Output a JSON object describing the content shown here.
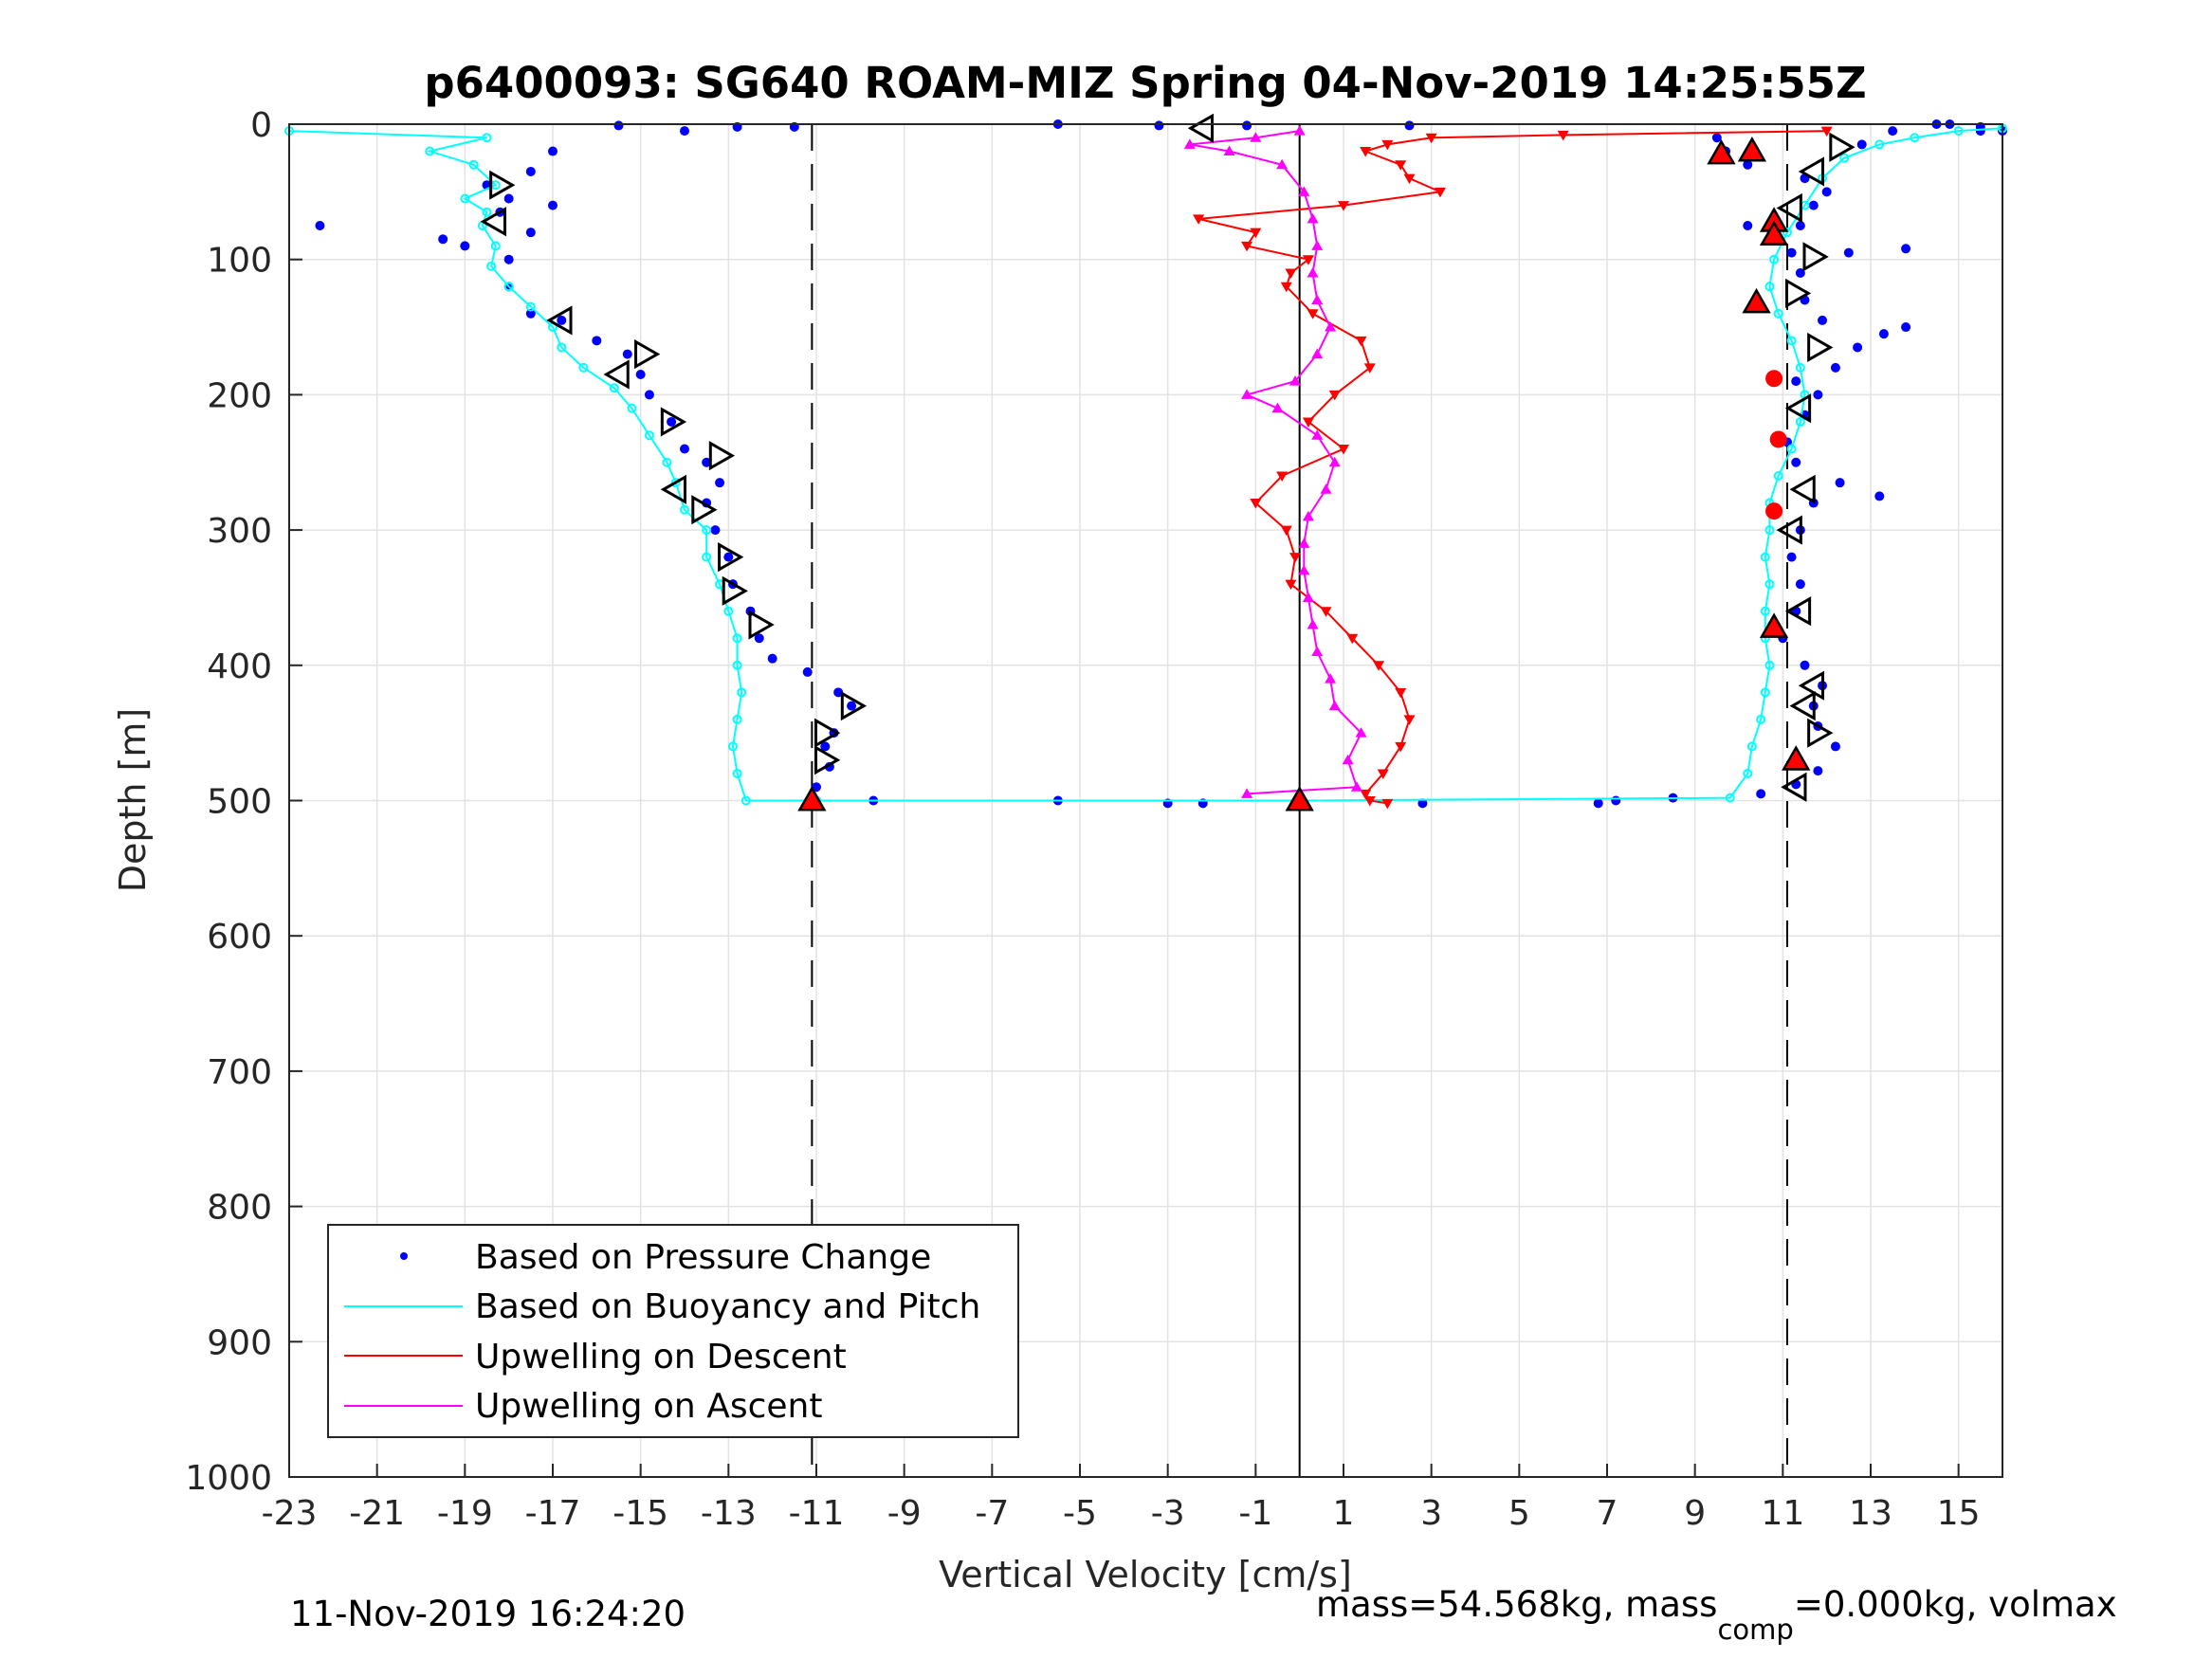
{
  "chart_data": {
    "type": "scatter",
    "title": "p6400093: SG640 ROAM-MIZ Spring 04-Nov-2019 14:25:55Z",
    "xlabel": "Vertical Velocity [cm/s]",
    "ylabel": "Depth [m]",
    "xlim": [
      -23,
      16
    ],
    "ylim": [
      0,
      1000
    ],
    "y_reversed": true,
    "grid": true,
    "x_ticks": [
      -23,
      -21,
      -19,
      -17,
      -15,
      -13,
      -11,
      -9,
      -7,
      -5,
      -3,
      -1,
      1,
      3,
      5,
      7,
      9,
      11,
      13,
      15
    ],
    "y_ticks": [
      0,
      100,
      200,
      300,
      400,
      500,
      600,
      700,
      800,
      900,
      1000
    ],
    "x_tick_labels": [
      "-23",
      "-21",
      "-19",
      "-17",
      "-15",
      "-13",
      "-11",
      "-9",
      "-7",
      "-5",
      "-3",
      "-1",
      "1",
      "3",
      "5",
      "7",
      "9",
      "11",
      "13",
      "15"
    ],
    "y_tick_labels": [
      "0",
      "100",
      "200",
      "300",
      "400",
      "500",
      "600",
      "700",
      "800",
      "900",
      "1000"
    ],
    "legend_position": "bottom-left",
    "legend": [
      {
        "label": "Based on Pressure Change",
        "color": "#0000ff",
        "style": "dot"
      },
      {
        "label": "Based on Buoyancy and Pitch",
        "color": "#00ffff",
        "style": "line"
      },
      {
        "label": "Upwelling on Descent",
        "color": "#ff0000",
        "style": "line"
      },
      {
        "label": "Upwelling on Ascent",
        "color": "#ff00ff",
        "style": "line"
      }
    ],
    "reference_lines": [
      {
        "x": -11.1,
        "style": "dashed",
        "color": "#000000"
      },
      {
        "x": 0,
        "style": "solid",
        "color": "#000000"
      },
      {
        "x": 11.1,
        "style": "dashed",
        "color": "#000000"
      }
    ],
    "series": [
      {
        "name": "Based on Pressure Change",
        "color": "#0000ff",
        "marker": "dot",
        "points": [
          [
            -15.5,
            1
          ],
          [
            -14,
            5
          ],
          [
            -12.8,
            2
          ],
          [
            -11.5,
            2
          ],
          [
            -5.5,
            0
          ],
          [
            -3.2,
            1
          ],
          [
            -1.2,
            1
          ],
          [
            2.5,
            1
          ],
          [
            14.8,
            0
          ],
          [
            15.5,
            2
          ],
          [
            16,
            5
          ],
          [
            -17,
            20
          ],
          [
            -17.5,
            35
          ],
          [
            -18,
            55
          ],
          [
            -17,
            60
          ],
          [
            -17.5,
            80
          ],
          [
            -19.5,
            85
          ],
          [
            -18,
            100
          ],
          [
            -18,
            120
          ],
          [
            -17.5,
            140
          ],
          [
            -16.8,
            145
          ],
          [
            -16,
            160
          ],
          [
            -15.3,
            170
          ],
          [
            -15,
            185
          ],
          [
            -14.8,
            200
          ],
          [
            -14.3,
            220
          ],
          [
            -14,
            240
          ],
          [
            -13.5,
            250
          ],
          [
            -13.2,
            265
          ],
          [
            -13.5,
            280
          ],
          [
            -13.3,
            300
          ],
          [
            -13,
            320
          ],
          [
            -12.9,
            340
          ],
          [
            -12.5,
            360
          ],
          [
            -12.3,
            380
          ],
          [
            -12,
            395
          ],
          [
            -11.2,
            405
          ],
          [
            -10.5,
            420
          ],
          [
            -10.2,
            430
          ],
          [
            -10.6,
            450
          ],
          [
            -10.8,
            460
          ],
          [
            -10.7,
            475
          ],
          [
            -11,
            490
          ],
          [
            -11,
            500
          ],
          [
            -9.7,
            500
          ],
          [
            -5.5,
            500
          ],
          [
            -3,
            502
          ],
          [
            -2.2,
            502
          ],
          [
            2.8,
            502
          ],
          [
            6.8,
            502
          ],
          [
            7.2,
            500
          ],
          [
            8.5,
            498
          ],
          [
            10.5,
            495
          ],
          [
            11.3,
            488
          ],
          [
            11.8,
            478
          ],
          [
            12.2,
            460
          ],
          [
            11.8,
            445
          ],
          [
            11.7,
            430
          ],
          [
            11.9,
            415
          ],
          [
            11.5,
            400
          ],
          [
            11,
            380
          ],
          [
            11.3,
            360
          ],
          [
            11.4,
            340
          ],
          [
            11.2,
            320
          ],
          [
            11.4,
            300
          ],
          [
            11.7,
            280
          ],
          [
            12.3,
            265
          ],
          [
            13.2,
            275
          ],
          [
            11.3,
            250
          ],
          [
            11.1,
            235
          ],
          [
            11.5,
            215
          ],
          [
            11.8,
            200
          ],
          [
            11.3,
            190
          ],
          [
            12.2,
            180
          ],
          [
            12.7,
            165
          ],
          [
            13.8,
            150
          ],
          [
            13.3,
            155
          ],
          [
            11.9,
            145
          ],
          [
            11.5,
            130
          ],
          [
            11.4,
            110
          ],
          [
            11.2,
            95
          ],
          [
            12.5,
            95
          ],
          [
            13.8,
            92
          ],
          [
            10.2,
            75
          ],
          [
            11.4,
            75
          ],
          [
            11.7,
            60
          ],
          [
            12,
            50
          ],
          [
            11.5,
            40
          ],
          [
            10.2,
            30
          ],
          [
            9.7,
            20
          ],
          [
            9.5,
            10
          ],
          [
            12.8,
            15
          ],
          [
            13.5,
            5
          ],
          [
            14.5,
            0
          ],
          [
            15.5,
            5
          ],
          [
            -22.3,
            75
          ],
          [
            -18.5,
            45
          ],
          [
            -18.2,
            65
          ],
          [
            -19,
            90
          ]
        ]
      },
      {
        "name": "Based on Buoyancy and Pitch",
        "color": "#00ffff",
        "marker": "circle",
        "points": [
          [
            -23,
            5
          ],
          [
            -18.5,
            10
          ],
          [
            -19.8,
            20
          ],
          [
            -18.8,
            30
          ],
          [
            -18.3,
            45
          ],
          [
            -19,
            55
          ],
          [
            -18.5,
            65
          ],
          [
            -18.6,
            75
          ],
          [
            -18.3,
            90
          ],
          [
            -18.4,
            105
          ],
          [
            -18,
            120
          ],
          [
            -17.5,
            135
          ],
          [
            -17,
            150
          ],
          [
            -16.8,
            165
          ],
          [
            -16.3,
            180
          ],
          [
            -15.6,
            195
          ],
          [
            -15.2,
            210
          ],
          [
            -14.8,
            230
          ],
          [
            -14.4,
            250
          ],
          [
            -14.2,
            265
          ],
          [
            -14,
            285
          ],
          [
            -13.5,
            300
          ],
          [
            -13.5,
            320
          ],
          [
            -13.2,
            340
          ],
          [
            -13,
            360
          ],
          [
            -12.8,
            380
          ],
          [
            -12.8,
            400
          ],
          [
            -12.7,
            420
          ],
          [
            -12.8,
            440
          ],
          [
            -12.9,
            460
          ],
          [
            -12.8,
            480
          ],
          [
            -12.6,
            500
          ],
          [
            -11,
            500
          ],
          [
            0,
            500
          ],
          [
            9.8,
            498
          ],
          [
            10.2,
            480
          ],
          [
            10.3,
            460
          ],
          [
            10.5,
            440
          ],
          [
            10.6,
            420
          ],
          [
            10.7,
            400
          ],
          [
            10.6,
            380
          ],
          [
            10.6,
            360
          ],
          [
            10.7,
            340
          ],
          [
            10.6,
            320
          ],
          [
            10.7,
            300
          ],
          [
            10.7,
            280
          ],
          [
            10.9,
            260
          ],
          [
            11.2,
            240
          ],
          [
            11.4,
            220
          ],
          [
            11.5,
            200
          ],
          [
            11.4,
            180
          ],
          [
            11.2,
            160
          ],
          [
            10.9,
            140
          ],
          [
            10.7,
            120
          ],
          [
            10.8,
            100
          ],
          [
            11.1,
            80
          ],
          [
            11.5,
            60
          ],
          [
            11.9,
            40
          ],
          [
            12.4,
            25
          ],
          [
            13.2,
            15
          ],
          [
            14,
            10
          ],
          [
            15,
            5
          ],
          [
            16,
            3
          ]
        ]
      },
      {
        "name": "Upwelling on Descent",
        "color": "#ff0000",
        "marker": "triangle-down",
        "points": [
          [
            12,
            5
          ],
          [
            6,
            8
          ],
          [
            3,
            10
          ],
          [
            2,
            15
          ],
          [
            1.5,
            20
          ],
          [
            2.3,
            30
          ],
          [
            2.5,
            40
          ],
          [
            3.2,
            50
          ],
          [
            1,
            60
          ],
          [
            -2.3,
            70
          ],
          [
            -1,
            80
          ],
          [
            -1.2,
            90
          ],
          [
            0.2,
            100
          ],
          [
            -0.2,
            110
          ],
          [
            -0.3,
            120
          ],
          [
            0.3,
            140
          ],
          [
            1.4,
            160
          ],
          [
            1.6,
            180
          ],
          [
            0.8,
            200
          ],
          [
            0.2,
            220
          ],
          [
            1,
            240
          ],
          [
            -0.4,
            260
          ],
          [
            -1,
            280
          ],
          [
            -0.3,
            300
          ],
          [
            -0.1,
            320
          ],
          [
            -0.2,
            340
          ],
          [
            0.6,
            360
          ],
          [
            1.2,
            380
          ],
          [
            1.8,
            400
          ],
          [
            2.3,
            420
          ],
          [
            2.5,
            440
          ],
          [
            2.3,
            460
          ],
          [
            1.9,
            480
          ],
          [
            1.5,
            495
          ],
          [
            1.6,
            500
          ],
          [
            2,
            502
          ]
        ]
      },
      {
        "name": "Upwelling on Ascent",
        "color": "#ff00ff",
        "marker": "triangle-up",
        "points": [
          [
            -1.2,
            495
          ],
          [
            1.3,
            490
          ],
          [
            1.1,
            470
          ],
          [
            1.4,
            450
          ],
          [
            0.8,
            430
          ],
          [
            0.7,
            410
          ],
          [
            0.4,
            390
          ],
          [
            0.3,
            370
          ],
          [
            0.2,
            350
          ],
          [
            0.1,
            330
          ],
          [
            0.1,
            310
          ],
          [
            0.2,
            290
          ],
          [
            0.6,
            270
          ],
          [
            0.8,
            250
          ],
          [
            0.4,
            230
          ],
          [
            -0.5,
            210
          ],
          [
            -1.2,
            200
          ],
          [
            -0.1,
            190
          ],
          [
            0.4,
            170
          ],
          [
            0.7,
            150
          ],
          [
            0.4,
            130
          ],
          [
            0.3,
            110
          ],
          [
            0.4,
            90
          ],
          [
            0.3,
            70
          ],
          [
            0.1,
            50
          ],
          [
            -0.4,
            30
          ],
          [
            -1.6,
            20
          ],
          [
            -2.5,
            15
          ],
          [
            -1,
            10
          ],
          [
            0,
            5
          ]
        ]
      }
    ],
    "markers": {
      "open_triangles": [
        [
          -2.2,
          3,
          "left"
        ],
        [
          -18.2,
          45,
          "right"
        ],
        [
          -18.3,
          72,
          "left"
        ],
        [
          -16.8,
          145,
          "left"
        ],
        [
          -14.9,
          170,
          "right"
        ],
        [
          -15.5,
          185,
          "left"
        ],
        [
          -14.3,
          220,
          "right"
        ],
        [
          -13.2,
          245,
          "right"
        ],
        [
          -14.2,
          270,
          "left"
        ],
        [
          -13.6,
          285,
          "right"
        ],
        [
          -13,
          320,
          "right"
        ],
        [
          -12.9,
          345,
          "right"
        ],
        [
          -12.3,
          370,
          "right"
        ],
        [
          -10.2,
          430,
          "right"
        ],
        [
          -10.8,
          450,
          "right"
        ],
        [
          -10.8,
          470,
          "right"
        ],
        [
          12.3,
          17,
          "right"
        ],
        [
          11.7,
          35,
          "left"
        ],
        [
          11.2,
          62,
          "left"
        ],
        [
          11.7,
          98,
          "right"
        ],
        [
          11.3,
          125,
          "right"
        ],
        [
          11.8,
          165,
          "right"
        ],
        [
          11.4,
          210,
          "left"
        ],
        [
          11.5,
          270,
          "left"
        ],
        [
          11.2,
          300,
          "left"
        ],
        [
          11.4,
          360,
          "left"
        ],
        [
          11.7,
          415,
          "left"
        ],
        [
          11.5,
          430,
          "left"
        ],
        [
          11.8,
          450,
          "right"
        ],
        [
          11.3,
          490,
          "left"
        ]
      ],
      "red_triangles": [
        [
          9.6,
          22
        ],
        [
          10.3,
          20
        ],
        [
          10.8,
          72
        ],
        [
          10.8,
          82
        ],
        [
          10.4,
          132
        ],
        [
          10.8,
          372
        ],
        [
          11.3,
          470
        ],
        [
          -11.1,
          500
        ],
        [
          0,
          500
        ]
      ],
      "red_dots": [
        [
          10.8,
          188
        ],
        [
          10.9,
          233
        ],
        [
          10.8,
          286
        ]
      ]
    }
  },
  "footer": {
    "timestamp": "11-Nov-2019 16:24:20",
    "mass_prefix": "mass=54.568kg, mass",
    "mass_sub": "comp",
    "mass_suffix": "=0.000kg, volmax"
  }
}
